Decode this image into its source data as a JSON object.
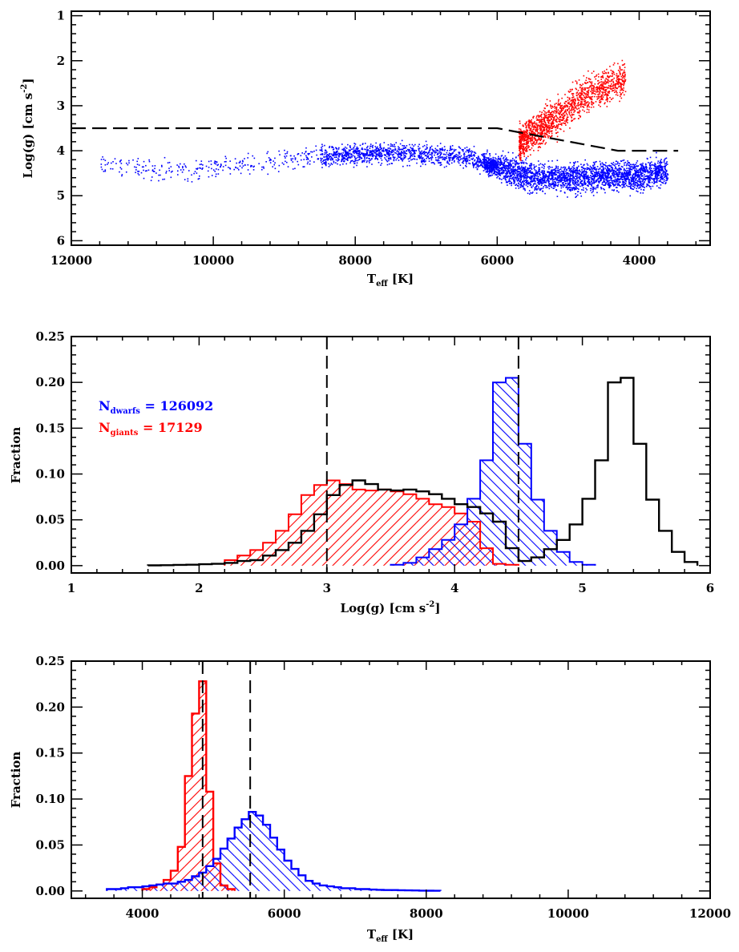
{
  "chart_data": [
    {
      "type": "scatter",
      "xlabel_main": "T",
      "xlabel_sub": "eff",
      "xlabel_unit": " [K]",
      "ylabel_main": "Log(g)  [cm s",
      "ylabel_sup": "-2",
      "ylabel_end": "]",
      "xlim": [
        12000,
        3000
      ],
      "ylim": [
        6.1,
        0.9
      ],
      "x_ticks": [
        12000,
        10000,
        8000,
        6000,
        4000
      ],
      "y_ticks": [
        1,
        2,
        3,
        4,
        5,
        6
      ],
      "x_tick_labels": [
        "12000",
        "10000",
        "8000",
        "6000",
        "4000"
      ],
      "y_tick_labels": [
        "1",
        "2",
        "3",
        "4",
        "5",
        "6"
      ],
      "x_minor_step": 400,
      "y_minor_step": 0.2,
      "colors": {
        "dwarfs": "#0000ff",
        "giants": "#ff0000",
        "boundary": "#000000"
      },
      "boundary_line": {
        "x": [
          12000,
          6000,
          4300,
          3450
        ],
        "y": [
          3.5,
          3.5,
          4.0,
          4.0
        ]
      },
      "dwarf_density_profile": {
        "x": [
          11600,
          10500,
          9500,
          8500,
          7500,
          6500,
          6000,
          5500,
          5000,
          4500,
          4000,
          3600
        ],
        "y": [
          4.3,
          4.45,
          4.3,
          4.1,
          4.05,
          4.1,
          4.35,
          4.6,
          4.6,
          4.55,
          4.55,
          4.45
        ]
      },
      "giant_density_profile": {
        "x": [
          5700,
          5400,
          5100,
          4900,
          4700,
          4500,
          4200
        ],
        "y": [
          3.8,
          3.5,
          3.2,
          2.9,
          2.7,
          2.6,
          2.4
        ]
      }
    },
    {
      "type": "bar",
      "histtype": "step-hatched",
      "xlabel_main": "Log(g)  [cm s",
      "xlabel_sup": "-2",
      "xlabel_end": "]",
      "ylabel": "Fraction",
      "xlim": [
        1,
        6
      ],
      "ylim": [
        -0.008,
        0.25
      ],
      "x_ticks": [
        1,
        2,
        3,
        4,
        5,
        6
      ],
      "y_ticks": [
        0.0,
        0.05,
        0.1,
        0.15,
        0.2,
        0.25
      ],
      "x_tick_labels": [
        "1",
        "2",
        "3",
        "4",
        "5",
        "6"
      ],
      "y_tick_labels": [
        "0.00",
        "0.05",
        "0.10",
        "0.15",
        "0.20",
        "0.25"
      ],
      "x_minor_step": 0.2,
      "y_minor_step": 0.01,
      "bin_width": 0.1,
      "vertical_lines": [
        3.0,
        4.5
      ],
      "legend": [
        {
          "main": "N",
          "sub": "dwarfs",
          "text": " = 126092",
          "color": "#0000ff"
        },
        {
          "main": "N",
          "sub": "giants",
          "text": " = 17129",
          "color": "#ff0000"
        }
      ],
      "series": [
        {
          "name": "giants",
          "color": "#ff0000",
          "hatch": "down",
          "bin_start": 2.2,
          "values": [
            0.006,
            0.011,
            0.017,
            0.025,
            0.038,
            0.056,
            0.077,
            0.088,
            0.093,
            0.089,
            0.083,
            0.082,
            0.083,
            0.081,
            0.078,
            0.073,
            0.067,
            0.064,
            0.057,
            0.048,
            0.019,
            0.002,
            0.001
          ]
        },
        {
          "name": "dwarfs",
          "color": "#0000ff",
          "hatch": "up",
          "bin_start": 3.5,
          "values": [
            0.001,
            0.003,
            0.009,
            0.018,
            0.028,
            0.045,
            0.073,
            0.115,
            0.2,
            0.205,
            0.133,
            0.072,
            0.038,
            0.015,
            0.004,
            0.001
          ]
        },
        {
          "name": "all",
          "color": "#000000",
          "hatch": "none",
          "bin_start": 1.6,
          "values": [
            0.0003,
            0.0005,
            0.0008,
            0.001,
            0.0015,
            0.002,
            0.003,
            0.005,
            0.006,
            0.011,
            0.017,
            0.025,
            0.038,
            0.056,
            0.077,
            0.088,
            0.093,
            0.089,
            0.083,
            0.082,
            0.083,
            0.081,
            0.078,
            0.073,
            0.067,
            0.064,
            0.057,
            0.048,
            0.019,
            0.005,
            0.009,
            0.018,
            0.028,
            0.045,
            0.073,
            0.115,
            0.2,
            0.205,
            0.133,
            0.072,
            0.038,
            0.015,
            0.004
          ]
        }
      ]
    },
    {
      "type": "bar",
      "histtype": "step-hatched",
      "xlabel_main": "T",
      "xlabel_sub": "eff",
      "xlabel_unit": " [K]",
      "ylabel": "Fraction",
      "xlim": [
        3000,
        12000
      ],
      "ylim": [
        -0.008,
        0.25
      ],
      "x_ticks": [
        4000,
        6000,
        8000,
        10000,
        12000
      ],
      "y_ticks": [
        0.0,
        0.05,
        0.1,
        0.15,
        0.2,
        0.25
      ],
      "x_tick_labels": [
        "4000",
        "6000",
        "8000",
        "10000",
        "12000"
      ],
      "y_tick_labels": [
        "0.00",
        "0.05",
        "0.10",
        "0.15",
        "0.20",
        "0.25"
      ],
      "x_minor_step": 400,
      "y_minor_step": 0.01,
      "bin_width": 100,
      "vertical_lines": [
        4850,
        5520
      ],
      "series": [
        {
          "name": "giants",
          "color": "#ff0000",
          "hatch": "down",
          "bin_start": 4000,
          "values": [
            0.002,
            0.004,
            0.007,
            0.012,
            0.022,
            0.048,
            0.125,
            0.193,
            0.228,
            0.108,
            0.03,
            0.006,
            0.002
          ]
        },
        {
          "name": "dwarfs",
          "color": "#0000ff",
          "hatch": "up",
          "bin_start": 3500,
          "values": [
            0.002,
            0.002,
            0.003,
            0.004,
            0.004,
            0.005,
            0.006,
            0.007,
            0.008,
            0.008,
            0.01,
            0.012,
            0.016,
            0.02,
            0.027,
            0.035,
            0.046,
            0.057,
            0.069,
            0.078,
            0.086,
            0.082,
            0.072,
            0.058,
            0.045,
            0.033,
            0.024,
            0.017,
            0.011,
            0.008,
            0.006,
            0.005,
            0.004,
            0.003,
            0.003,
            0.002,
            0.002,
            0.0015,
            0.0012,
            0.001,
            0.001,
            0.0008,
            0.0006,
            0.0005,
            0.0004,
            0.0003,
            0.0002
          ]
        }
      ]
    }
  ]
}
